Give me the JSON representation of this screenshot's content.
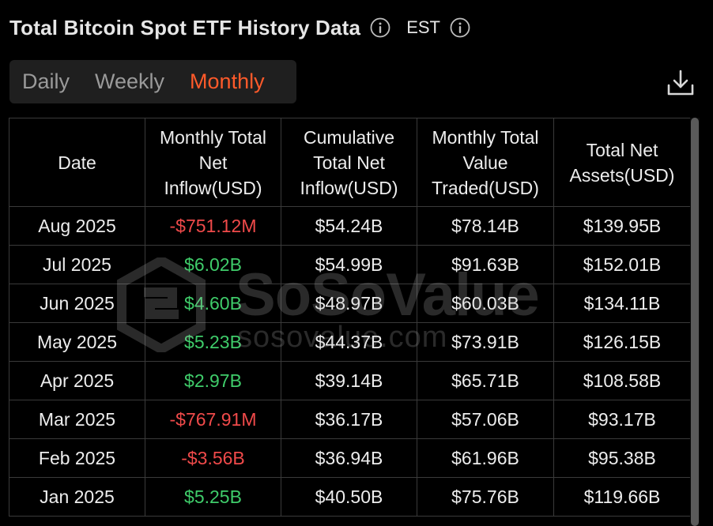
{
  "header": {
    "title": "Total Bitcoin Spot ETF History Data",
    "timezone": "EST",
    "info_icon": "info-circle-icon"
  },
  "tabs": [
    {
      "label": "Daily",
      "active": false
    },
    {
      "label": "Weekly",
      "active": false
    },
    {
      "label": "Monthly",
      "active": true
    }
  ],
  "toolbar": {
    "download_icon": "download-icon"
  },
  "colors": {
    "accent": "#ff5a2a",
    "positive": "#3fcc6a",
    "negative": "#f04a4a"
  },
  "table": {
    "columns": [
      "Date",
      "Monthly Total Net Inflow(USD)",
      "Cumulative Total Net Inflow(USD)",
      "Monthly Total Value Traded(USD)",
      "Total Net Assets(USD)"
    ],
    "rows": [
      {
        "date": "Aug 2025",
        "inflow": "-$751.12M",
        "cumulative": "$54.24B",
        "traded": "$78.14B",
        "assets": "$139.95B"
      },
      {
        "date": "Jul 2025",
        "inflow": "$6.02B",
        "cumulative": "$54.99B",
        "traded": "$91.63B",
        "assets": "$152.01B"
      },
      {
        "date": "Jun 2025",
        "inflow": "$4.60B",
        "cumulative": "$48.97B",
        "traded": "$60.03B",
        "assets": "$134.11B"
      },
      {
        "date": "May 2025",
        "inflow": "$5.23B",
        "cumulative": "$44.37B",
        "traded": "$73.91B",
        "assets": "$126.15B"
      },
      {
        "date": "Apr 2025",
        "inflow": "$2.97B",
        "cumulative": "$39.14B",
        "traded": "$65.71B",
        "assets": "$108.58B"
      },
      {
        "date": "Mar 2025",
        "inflow": "-$767.91M",
        "cumulative": "$36.17B",
        "traded": "$57.06B",
        "assets": "$93.17B"
      },
      {
        "date": "Feb 2025",
        "inflow": "-$3.56B",
        "cumulative": "$36.94B",
        "traded": "$61.96B",
        "assets": "$95.38B"
      },
      {
        "date": "Jan 2025",
        "inflow": "$5.25B",
        "cumulative": "$40.50B",
        "traded": "$75.76B",
        "assets": "$119.66B"
      }
    ]
  },
  "watermark": {
    "brand": "SoSoValue",
    "url": "sosovalue.com"
  }
}
